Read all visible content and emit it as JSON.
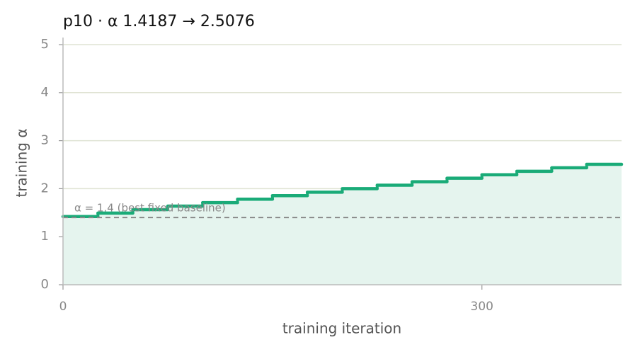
{
  "chart_data": {
    "type": "step",
    "step": "post",
    "title": "p10   ·   α 1.4187 → 2.5076",
    "x_label": "training iteration",
    "y_label": "training α",
    "x": [
      0,
      25,
      50,
      75,
      100,
      125,
      150,
      175,
      200,
      225,
      250,
      275,
      300,
      325,
      350,
      375
    ],
    "series": [
      {
        "name": "training α",
        "color": "#1aab78",
        "values": [
          1.4187,
          1.4913,
          1.5639,
          1.6365,
          1.7091,
          1.7817,
          1.8543,
          1.9269,
          1.9995,
          2.0721,
          2.1447,
          2.2173,
          2.2898,
          2.3624,
          2.435,
          2.5076
        ]
      }
    ],
    "fill": "#e5f4ee",
    "baseline": {
      "value": 1.4,
      "label": "α = 1.4 (best fixed baseline)",
      "color": "#888888"
    },
    "xlim": [
      0,
      400
    ],
    "xticks": [
      0,
      300
    ],
    "ylim": [
      0,
      5
    ],
    "yticks": [
      0,
      1,
      2,
      3,
      4,
      5
    ],
    "grid": true
  }
}
